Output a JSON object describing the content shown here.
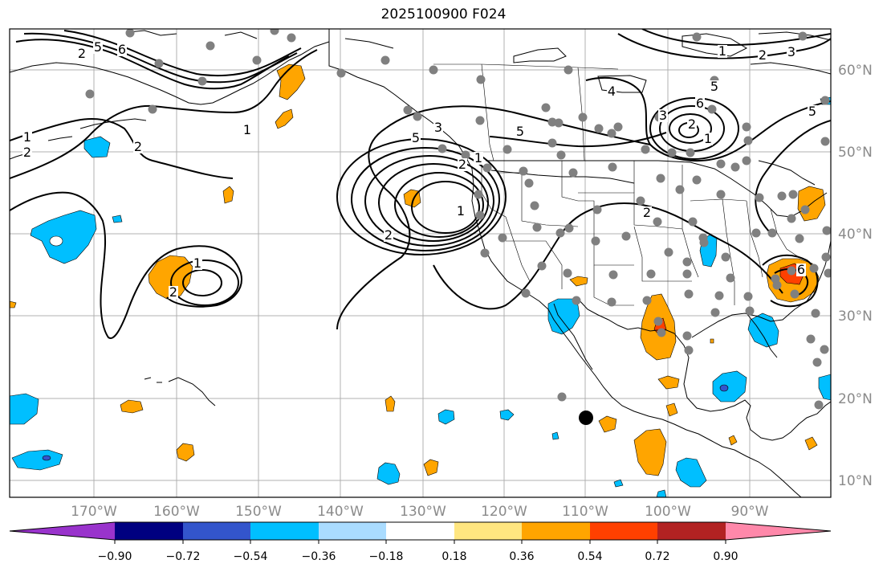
{
  "title": "2025100900 F024",
  "map": {
    "lon_labels": [
      "170°W",
      "160°W",
      "150°W",
      "140°W",
      "130°W",
      "120°W",
      "110°W",
      "100°W",
      "90°W"
    ],
    "lat_labels": [
      "60°N",
      "50°N",
      "40°N",
      "30°N",
      "20°N",
      "10°N"
    ],
    "contour_labels": [
      "1",
      "2",
      "2",
      "5",
      "6",
      "1",
      "2",
      "1",
      "2",
      "2",
      "5",
      "3",
      "1",
      "2",
      "5",
      "1",
      "2",
      "4",
      "5",
      "6",
      "1",
      "2",
      "3",
      "5",
      "6",
      "1",
      "2",
      "3"
    ],
    "colors": {
      "frame": "#000000",
      "grid": "#b0b0b0",
      "coast": "#000000",
      "station_dot": "#808080",
      "center_dot": "#000000"
    }
  },
  "colorbar": {
    "ticks": [
      "−0.90",
      "−0.72",
      "−0.54",
      "−0.36",
      "−0.18",
      "0.18",
      "0.36",
      "0.54",
      "0.72",
      "0.90"
    ],
    "colors": [
      "#9933cc",
      "#000080",
      "#3355cc",
      "#00bfff",
      "#aadcff",
      "#ffffff",
      "#ffe680",
      "#ffa500",
      "#ff4000",
      "#b22222",
      "#ff88aa"
    ]
  }
}
